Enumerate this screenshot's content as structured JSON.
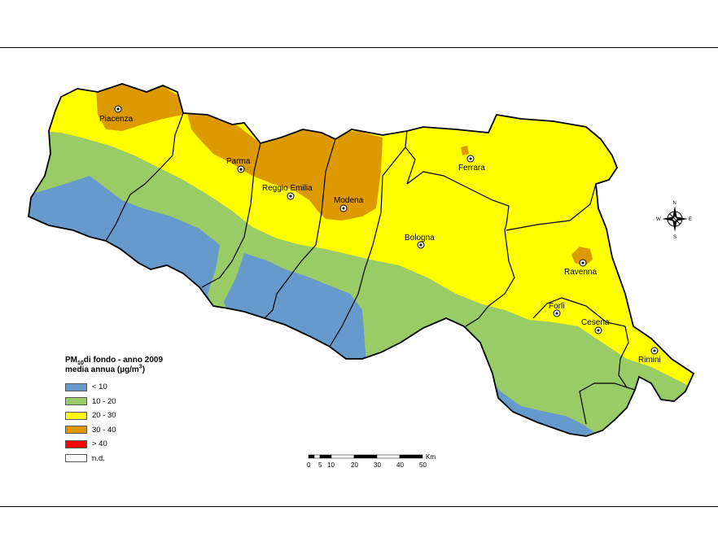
{
  "legend": {
    "title_pm": "PM",
    "title_sub": "10",
    "title_rest": "di fondo - anno 2009",
    "subtitle_pre": "media annua (µg/m",
    "subtitle_sup": "3",
    "subtitle_post": ")",
    "items": [
      {
        "label": "< 10",
        "color": "#6699cc"
      },
      {
        "label": "10 - 20",
        "color": "#99cc66"
      },
      {
        "label": "20 - 30",
        "color": "#ffff00"
      },
      {
        "label": "30 - 40",
        "color": "#dd9900"
      },
      {
        "label": "> 40",
        "color": "#ff0000"
      },
      {
        "label": "n.d.",
        "color": "#ffffff"
      }
    ]
  },
  "cities": {
    "piacenza": "Piacenza",
    "parma": "Parma",
    "reggio": "Reggio Emilia",
    "modena": "Modena",
    "ferrara": "Ferrara",
    "bologna": "Bologna",
    "ravenna": "Ravenna",
    "forli": "Forlì",
    "cesena": "Cesena",
    "rimini": "Rimini"
  },
  "scalebar": {
    "unit": "Km",
    "ticks": [
      "0",
      "5",
      "10",
      "20",
      "30",
      "40",
      "50"
    ]
  },
  "compass": {
    "n": "N",
    "s": "S",
    "e": "E",
    "w": "W"
  }
}
